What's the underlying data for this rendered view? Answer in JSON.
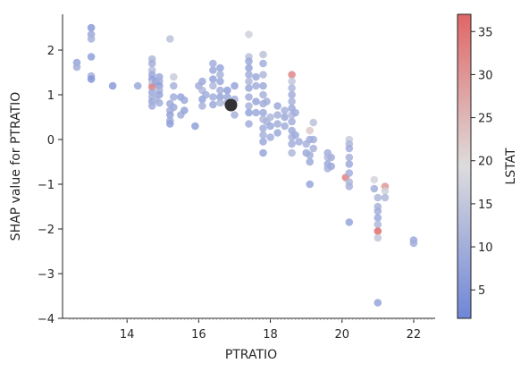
{
  "chart_data": {
    "type": "scatter",
    "xlabel": "PTRATIO",
    "ylabel": "SHAP value for PTRATIO",
    "xlim": [
      12.2,
      22.6
    ],
    "ylim": [
      -4.0,
      2.8
    ],
    "xticks": [
      14,
      16,
      18,
      20,
      22
    ],
    "yticks": [
      -4,
      -3,
      -2,
      -1,
      0,
      1,
      2
    ],
    "colorbar": {
      "label": "LSTAT",
      "min": 1.7,
      "max": 37.0,
      "ticks": [
        5,
        10,
        15,
        20,
        25,
        30,
        35
      ],
      "colormap": "coolwarm",
      "low_color": "#6f86d8",
      "mid_color": "#dddcdc",
      "high_color": "#e06666"
    },
    "highlight": {
      "x": 16.9,
      "y": 0.77,
      "color": "#333333"
    },
    "points": [
      [
        12.6,
        1.72,
        8
      ],
      [
        12.6,
        1.62,
        10
      ],
      [
        13.0,
        2.5,
        6
      ],
      [
        13.0,
        2.35,
        9
      ],
      [
        13.0,
        2.25,
        11
      ],
      [
        13.0,
        1.85,
        7
      ],
      [
        13.0,
        1.42,
        10
      ],
      [
        13.0,
        1.35,
        5
      ],
      [
        13.6,
        1.2,
        6
      ],
      [
        14.3,
        1.2,
        9
      ],
      [
        14.7,
        1.8,
        12
      ],
      [
        14.7,
        1.7,
        10
      ],
      [
        14.7,
        1.55,
        13
      ],
      [
        14.7,
        1.45,
        9
      ],
      [
        14.7,
        1.35,
        7
      ],
      [
        14.7,
        1.25,
        15
      ],
      [
        14.7,
        1.17,
        33
      ],
      [
        14.7,
        1.05,
        9
      ],
      [
        14.7,
        0.95,
        11
      ],
      [
        14.7,
        0.85,
        8
      ],
      [
        14.7,
        0.75,
        10
      ],
      [
        14.8,
        1.3,
        8
      ],
      [
        14.8,
        0.9,
        12
      ],
      [
        14.9,
        1.4,
        9
      ],
      [
        14.9,
        1.3,
        10
      ],
      [
        14.9,
        1.2,
        7
      ],
      [
        14.9,
        1.1,
        11
      ],
      [
        14.9,
        1.0,
        8
      ],
      [
        14.9,
        0.82,
        10
      ],
      [
        15.2,
        2.25,
        14
      ],
      [
        15.2,
        0.8,
        9
      ],
      [
        15.2,
        0.65,
        10
      ],
      [
        15.2,
        0.55,
        8
      ],
      [
        15.2,
        0.42,
        9
      ],
      [
        15.2,
        0.35,
        7
      ],
      [
        15.3,
        1.4,
        16
      ],
      [
        15.3,
        1.2,
        11
      ],
      [
        15.3,
        0.95,
        10
      ],
      [
        15.3,
        0.72,
        9
      ],
      [
        15.5,
        0.95,
        8
      ],
      [
        15.5,
        0.55,
        10
      ],
      [
        15.6,
        0.65,
        8
      ],
      [
        15.6,
        0.88,
        9
      ],
      [
        15.9,
        0.3,
        7
      ],
      [
        16.0,
        1.2,
        10
      ],
      [
        16.1,
        1.3,
        9
      ],
      [
        16.1,
        1.1,
        12
      ],
      [
        16.1,
        0.9,
        8
      ],
      [
        16.2,
        1.0,
        10
      ],
      [
        16.1,
        0.75,
        11
      ],
      [
        16.4,
        1.7,
        10
      ],
      [
        16.4,
        1.55,
        9
      ],
      [
        16.4,
        1.35,
        8
      ],
      [
        16.4,
        1.2,
        12
      ],
      [
        16.4,
        0.95,
        10
      ],
      [
        16.4,
        0.78,
        9
      ],
      [
        16.6,
        1.6,
        8
      ],
      [
        16.6,
        1.45,
        11
      ],
      [
        16.6,
        1.3,
        9
      ],
      [
        16.6,
        1.1,
        10
      ],
      [
        16.6,
        0.95,
        8
      ],
      [
        16.6,
        0.82,
        12
      ],
      [
        16.8,
        1.1,
        7
      ],
      [
        16.8,
        0.95,
        9
      ],
      [
        16.8,
        0.82,
        10
      ],
      [
        17.0,
        1.2,
        8
      ],
      [
        17.0,
        0.9,
        10
      ],
      [
        17.0,
        0.55,
        11
      ],
      [
        17.4,
        2.35,
        17
      ],
      [
        17.4,
        1.85,
        14
      ],
      [
        17.4,
        1.75,
        9
      ],
      [
        17.4,
        1.6,
        8
      ],
      [
        17.4,
        1.45,
        10
      ],
      [
        17.4,
        1.3,
        12
      ],
      [
        17.4,
        1.15,
        9
      ],
      [
        17.4,
        0.95,
        10
      ],
      [
        17.4,
        0.75,
        11
      ],
      [
        17.4,
        0.6,
        8
      ],
      [
        17.4,
        0.35,
        10
      ],
      [
        17.6,
        1.4,
        9
      ],
      [
        17.6,
        1.2,
        10
      ],
      [
        17.6,
        0.85,
        8
      ],
      [
        17.6,
        0.6,
        9
      ],
      [
        17.8,
        1.9,
        14
      ],
      [
        17.8,
        1.7,
        10
      ],
      [
        17.8,
        1.45,
        12
      ],
      [
        17.8,
        1.2,
        9
      ],
      [
        17.8,
        1.0,
        11
      ],
      [
        17.8,
        0.8,
        10
      ],
      [
        17.8,
        0.6,
        9
      ],
      [
        17.8,
        0.45,
        12
      ],
      [
        17.8,
        0.25,
        10
      ],
      [
        17.8,
        0.1,
        11
      ],
      [
        17.8,
        -0.05,
        9
      ],
      [
        17.8,
        -0.3,
        8
      ],
      [
        17.9,
        0.85,
        10
      ],
      [
        17.9,
        0.4,
        11
      ],
      [
        18.0,
        0.3,
        9
      ],
      [
        18.0,
        0.5,
        12
      ],
      [
        18.0,
        0.05,
        10
      ],
      [
        18.2,
        0.75,
        9
      ],
      [
        18.2,
        0.55,
        11
      ],
      [
        18.2,
        0.35,
        10
      ],
      [
        18.2,
        0.15,
        9
      ],
      [
        18.4,
        0.65,
        11
      ],
      [
        18.4,
        0.5,
        9
      ],
      [
        18.4,
        0.3,
        10
      ],
      [
        18.6,
        1.45,
        32
      ],
      [
        18.6,
        1.3,
        15
      ],
      [
        18.6,
        1.15,
        12
      ],
      [
        18.6,
        1.0,
        10
      ],
      [
        18.6,
        0.85,
        11
      ],
      [
        18.6,
        0.7,
        9
      ],
      [
        18.6,
        0.55,
        12
      ],
      [
        18.6,
        0.4,
        10
      ],
      [
        18.6,
        0.2,
        9
      ],
      [
        18.6,
        0.05,
        11
      ],
      [
        18.6,
        -0.1,
        10
      ],
      [
        18.6,
        -0.3,
        12
      ],
      [
        18.7,
        0.6,
        10
      ],
      [
        18.7,
        0.1,
        9
      ],
      [
        18.8,
        -0.05,
        10
      ],
      [
        19.0,
        -0.1,
        11
      ],
      [
        19.0,
        -0.3,
        9
      ],
      [
        19.1,
        0.2,
        22
      ],
      [
        19.1,
        0.0,
        10
      ],
      [
        19.1,
        -0.5,
        9
      ],
      [
        19.1,
        -0.35,
        10
      ],
      [
        19.1,
        -1.0,
        8
      ],
      [
        19.2,
        0.38,
        14
      ],
      [
        19.2,
        0.0,
        10
      ],
      [
        19.2,
        -0.2,
        11
      ],
      [
        19.6,
        -0.3,
        10
      ],
      [
        19.6,
        -0.4,
        12
      ],
      [
        19.6,
        -0.55,
        9
      ],
      [
        19.6,
        -0.65,
        11
      ],
      [
        19.7,
        -0.4,
        10
      ],
      [
        19.7,
        -0.6,
        9
      ],
      [
        20.1,
        -0.85,
        33
      ],
      [
        20.2,
        0.0,
        16
      ],
      [
        20.2,
        -0.1,
        12
      ],
      [
        20.2,
        -0.2,
        10
      ],
      [
        20.2,
        -0.4,
        11
      ],
      [
        20.2,
        -0.55,
        9
      ],
      [
        20.2,
        -0.75,
        10
      ],
      [
        20.2,
        -0.95,
        12
      ],
      [
        20.2,
        -1.05,
        11
      ],
      [
        20.2,
        -1.85,
        8
      ],
      [
        20.9,
        -0.9,
        18
      ],
      [
        20.9,
        -1.1,
        10
      ],
      [
        21.0,
        -1.3,
        12
      ],
      [
        21.0,
        -1.5,
        11
      ],
      [
        21.0,
        -1.6,
        10
      ],
      [
        21.0,
        -1.75,
        9
      ],
      [
        21.0,
        -1.9,
        12
      ],
      [
        21.0,
        -2.05,
        36
      ],
      [
        21.0,
        -2.2,
        15
      ],
      [
        21.0,
        -3.65,
        8
      ],
      [
        21.2,
        -1.05,
        30
      ],
      [
        21.2,
        -1.15,
        17
      ],
      [
        21.2,
        -1.3,
        12
      ],
      [
        22.0,
        -2.25,
        9
      ],
      [
        22.0,
        -2.32,
        10
      ]
    ]
  }
}
